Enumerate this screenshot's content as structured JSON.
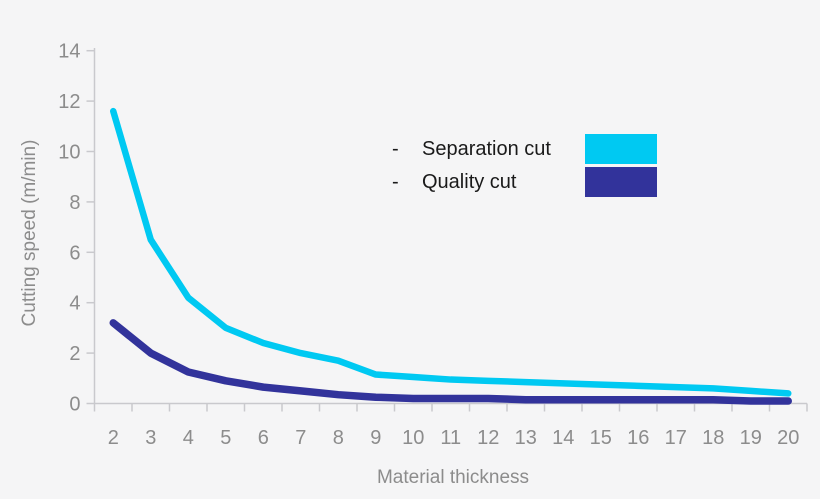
{
  "background_color": "#f5f5f6",
  "chart_data": {
    "type": "line",
    "title": "",
    "xlabel": "Material thickness",
    "ylabel": "Cutting speed (m/min)",
    "x": [
      2,
      3,
      4,
      5,
      6,
      7,
      8,
      9,
      10,
      11,
      12,
      13,
      14,
      15,
      16,
      17,
      18,
      19,
      20
    ],
    "series": [
      {
        "name": "Separation cut",
        "color": "#00c9f2",
        "values": [
          11.6,
          6.5,
          4.2,
          3.0,
          2.4,
          2.0,
          1.7,
          1.15,
          1.05,
          0.95,
          0.9,
          0.85,
          0.8,
          0.75,
          0.7,
          0.65,
          0.6,
          0.5,
          0.4
        ]
      },
      {
        "name": "Quality cut",
        "color": "#32339b",
        "values": [
          3.2,
          2.0,
          1.25,
          0.9,
          0.65,
          0.5,
          0.35,
          0.25,
          0.2,
          0.2,
          0.2,
          0.15,
          0.15,
          0.15,
          0.15,
          0.15,
          0.15,
          0.1,
          0.1
        ]
      }
    ],
    "ylim": [
      0,
      14
    ],
    "yticks": [
      0,
      2,
      4,
      6,
      8,
      10,
      12,
      14
    ],
    "grid": false,
    "legend_position": "upper-center",
    "legend_dash": "-",
    "axis_color": "#c9c9cd",
    "label_color": "#8c8c8c",
    "legend_text_color": "#1a1a1a"
  }
}
